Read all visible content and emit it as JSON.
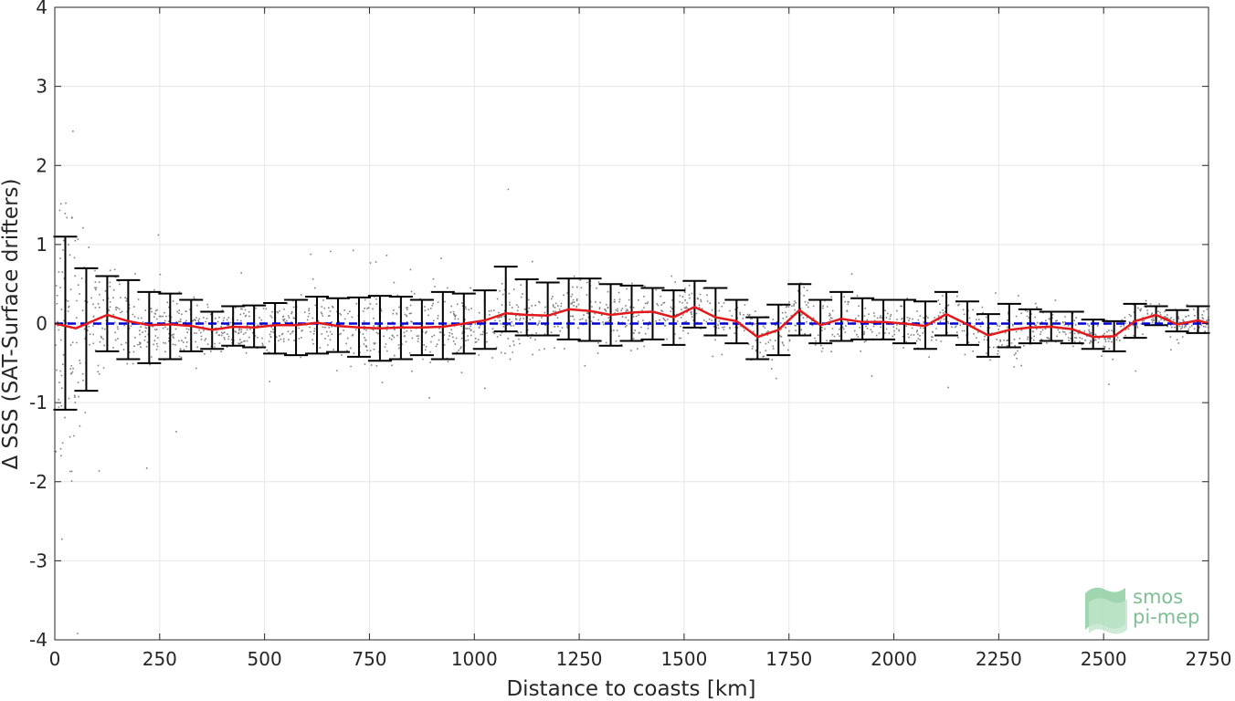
{
  "chart_data": {
    "type": "scatter",
    "title": "",
    "xlabel": "Distance to coasts [km]",
    "ylabel": "Δ SSS (SAT-Surface drifters)",
    "xlim": [
      0,
      2750
    ],
    "ylim": [
      -4,
      4
    ],
    "xticks": [
      0,
      250,
      500,
      750,
      1000,
      1250,
      1500,
      1750,
      2000,
      2250,
      2500,
      2750
    ],
    "yticks": [
      -4,
      -3,
      -2,
      -1,
      0,
      1,
      2,
      3,
      4
    ],
    "grid": true,
    "colors": {
      "scatter": "#808080",
      "median": "#e31a1c",
      "zero_line": "#0000cc",
      "error_bars": "#000000"
    },
    "logo": {
      "line1": "smos",
      "line2": "pi-mep"
    },
    "series": [
      {
        "kind": "median_line",
        "x": [
          0,
          50,
          125,
          175,
          225,
          275,
          325,
          375,
          425,
          475,
          525,
          575,
          625,
          675,
          725,
          775,
          825,
          875,
          925,
          975,
          1025,
          1075,
          1125,
          1175,
          1225,
          1275,
          1325,
          1375,
          1425,
          1475,
          1525,
          1575,
          1625,
          1675,
          1725,
          1775,
          1825,
          1875,
          1925,
          1975,
          2025,
          2075,
          2125,
          2175,
          2225,
          2275,
          2325,
          2375,
          2425,
          2475,
          2525,
          2575,
          2625,
          2675,
          2725,
          2750
        ],
        "y": [
          0,
          -0.06,
          0.11,
          0.03,
          -0.02,
          -0.01,
          -0.03,
          -0.08,
          -0.04,
          -0.05,
          -0.02,
          -0.02,
          0.01,
          -0.03,
          -0.05,
          -0.06,
          -0.05,
          -0.05,
          -0.04,
          0,
          0.04,
          0.13,
          0.11,
          0.1,
          0.18,
          0.16,
          0.11,
          0.14,
          0.15,
          0.08,
          0.21,
          0.08,
          0.03,
          -0.17,
          -0.08,
          0.17,
          -0.02,
          0.06,
          0.02,
          0.02,
          0,
          -0.03,
          0.12,
          -0.01,
          -0.15,
          -0.08,
          -0.05,
          -0.04,
          -0.07,
          -0.17,
          -0.16,
          0.03,
          0.11,
          -0.01,
          0.04,
          0
        ]
      },
      {
        "kind": "error_bars",
        "x": [
          25,
          75,
          125,
          175,
          225,
          275,
          325,
          375,
          425,
          475,
          525,
          575,
          625,
          675,
          725,
          775,
          825,
          875,
          925,
          975,
          1025,
          1075,
          1125,
          1175,
          1225,
          1275,
          1325,
          1375,
          1425,
          1475,
          1525,
          1575,
          1625,
          1675,
          1725,
          1775,
          1825,
          1875,
          1925,
          1975,
          2025,
          2075,
          2125,
          2175,
          2225,
          2275,
          2325,
          2375,
          2425,
          2475,
          2525,
          2575,
          2625,
          2675,
          2725
        ],
        "low": [
          -1.09,
          -0.85,
          -0.35,
          -0.45,
          -0.5,
          -0.45,
          -0.35,
          -0.32,
          -0.28,
          -0.3,
          -0.38,
          -0.4,
          -0.38,
          -0.36,
          -0.42,
          -0.47,
          -0.45,
          -0.4,
          -0.45,
          -0.38,
          -0.32,
          -0.1,
          -0.15,
          -0.15,
          -0.2,
          -0.22,
          -0.28,
          -0.22,
          -0.2,
          -0.27,
          -0.05,
          -0.15,
          -0.25,
          -0.45,
          -0.4,
          -0.15,
          -0.25,
          -0.22,
          -0.2,
          -0.2,
          -0.25,
          -0.32,
          -0.15,
          -0.27,
          -0.42,
          -0.3,
          -0.25,
          -0.22,
          -0.25,
          -0.32,
          -0.35,
          -0.18,
          -0.02,
          -0.1,
          -0.12
        ],
        "high": [
          1.1,
          0.7,
          0.6,
          0.55,
          0.4,
          0.38,
          0.3,
          0.15,
          0.22,
          0.23,
          0.26,
          0.3,
          0.34,
          0.32,
          0.33,
          0.35,
          0.34,
          0.3,
          0.4,
          0.38,
          0.42,
          0.72,
          0.56,
          0.52,
          0.57,
          0.57,
          0.5,
          0.48,
          0.45,
          0.42,
          0.54,
          0.45,
          0.3,
          0.08,
          0.24,
          0.5,
          0.3,
          0.4,
          0.32,
          0.3,
          0.3,
          0.28,
          0.4,
          0.28,
          0.12,
          0.25,
          0.18,
          0.15,
          0.15,
          0.05,
          0.03,
          0.25,
          0.22,
          0.17,
          0.22
        ]
      },
      {
        "kind": "zero_line",
        "x": [
          0,
          2750
        ],
        "y": [
          0,
          0
        ]
      }
    ]
  }
}
